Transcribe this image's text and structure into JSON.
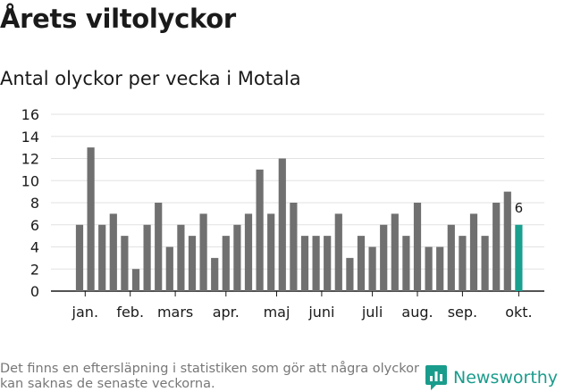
{
  "header": {
    "title": "Årets viltolyckor",
    "subtitle": "Antal olyckor per vecka i Motala"
  },
  "chart_data": {
    "type": "bar",
    "title": "Årets viltolyckor",
    "subtitle": "Antal olyckor per vecka i Motala",
    "xlabel": "",
    "ylabel": "",
    "ylim": [
      0,
      16
    ],
    "yticks": [
      0,
      2,
      4,
      6,
      8,
      10,
      12,
      14,
      16
    ],
    "grid": true,
    "values": [
      6,
      13,
      6,
      7,
      5,
      2,
      6,
      8,
      4,
      6,
      5,
      7,
      3,
      5,
      6,
      7,
      11,
      7,
      12,
      8,
      5,
      5,
      5,
      7,
      3,
      5,
      4,
      6,
      7,
      5,
      8,
      4,
      4,
      6,
      5,
      7,
      5,
      8,
      9,
      6
    ],
    "month_labels": [
      {
        "label": "jan.",
        "bar": 0.5
      },
      {
        "label": "feb.",
        "bar": 4.5
      },
      {
        "label": "mars",
        "bar": 8.5
      },
      {
        "label": "apr.",
        "bar": 13
      },
      {
        "label": "maj",
        "bar": 17.5
      },
      {
        "label": "juni",
        "bar": 21.5
      },
      {
        "label": "juli",
        "bar": 26
      },
      {
        "label": "aug.",
        "bar": 30
      },
      {
        "label": "sep.",
        "bar": 34
      },
      {
        "label": "okt.",
        "bar": 39
      }
    ],
    "highlight_index": 39,
    "highlight_label": "6",
    "colors": {
      "bar": "#707070",
      "highlight": "#1aa08f",
      "grid": "#e2e2e2",
      "axis": "#1a1a1a",
      "text": "#1a1a1a"
    }
  },
  "footer": {
    "note": "Det finns en eftersläpning i statistiken som gör att några olyckor kan saknas de senaste veckorna.",
    "brand": "Newsworthy",
    "brand_icon": "newsworthy-logo-icon",
    "brand_color": "#1a9c8c"
  }
}
